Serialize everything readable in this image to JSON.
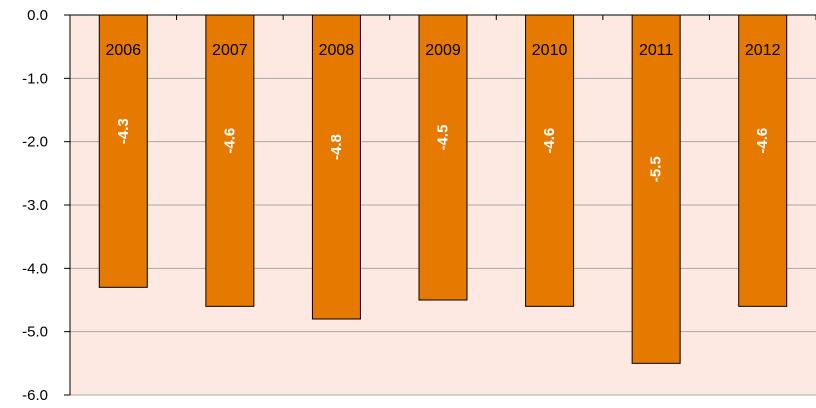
{
  "chart_data": {
    "type": "bar",
    "categories": [
      "2006",
      "2007",
      "2008",
      "2009",
      "2010",
      "2011",
      "2012"
    ],
    "values": [
      -4.3,
      -4.6,
      -4.8,
      -4.5,
      -4.6,
      -5.5,
      -4.6
    ],
    "value_labels": [
      "-4.3",
      "-4.6",
      "-4.8",
      "-4.5",
      "-4.6",
      "-5.5",
      "-4.6"
    ],
    "y_ticks": [
      0,
      -1,
      -2,
      -3,
      -4,
      -5,
      -6
    ],
    "y_tick_labels": [
      "0.0",
      "-1.0",
      "-2.0",
      "-3.0",
      "-4.0",
      "-5.0",
      "-6.0"
    ],
    "ylim": [
      -6,
      0
    ],
    "grid": true,
    "legend": "none",
    "title": "",
    "xlabel": "",
    "ylabel": "",
    "colors": {
      "bar": "#E67A00",
      "plot_background": "#FDE9E1",
      "gridline": "#A6A6A6",
      "bar_outline": "#000000"
    }
  }
}
